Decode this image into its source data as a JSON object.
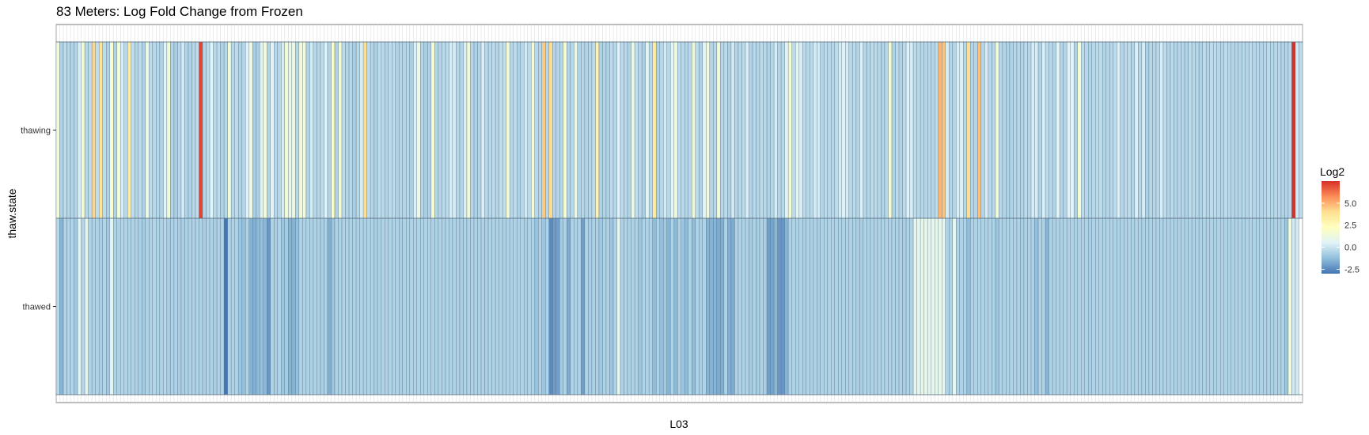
{
  "chart_data": {
    "type": "heatmap",
    "title": "83 Meters: Log Fold Change from Frozen",
    "xlabel": "L03",
    "ylabel": "thaw.state",
    "rows": [
      "thawing",
      "thawed"
    ],
    "legend": {
      "title": "Log2",
      "ticks": [
        "5.0",
        "2.5",
        "0.0",
        "-2.5"
      ],
      "tick_values": [
        5.0,
        2.5,
        0.0,
        -2.5
      ],
      "range": [
        -3.0,
        7.5
      ],
      "placement": "right",
      "colors": [
        "#4575b4",
        "#91bfdb",
        "#e0f3f8",
        "#ffffbf",
        "#fee090",
        "#fc8d59",
        "#d73027"
      ]
    },
    "values": {
      "thawing": [
        1.4,
        -0.6,
        -0.3,
        -0.5,
        -0.5,
        -0.5,
        0.4,
        1.6,
        -0.4,
        -0.3,
        4.2,
        -0.2,
        3.8,
        -0.3,
        -0.6,
        1.8,
        -0.6,
        1.5,
        0.3,
        -0.4,
        3.2,
        -0.3,
        -0.5,
        -0.3,
        -0.6,
        1.2,
        -0.3,
        -0.4,
        -0.4,
        -0.6,
        0.5,
        1.5,
        -0.5,
        -0.7,
        -0.4,
        0.2,
        -0.5,
        -0.6,
        -0.4,
        -0.3,
        7.1,
        -0.5,
        -0.3,
        0.5,
        -0.4,
        -0.3,
        -0.6,
        -0.4,
        1.6,
        -0.4,
        -0.3,
        -0.6,
        -0.5,
        0.5,
        1.3,
        -0.7,
        -0.7,
        0.8,
        1.6,
        -0.5,
        0.6,
        -0.4,
        -0.4,
        0.3,
        1.6,
        1.1,
        1.2,
        -0.4,
        1.5,
        1.5,
        -0.6,
        0.3,
        -0.4,
        -0.4,
        -0.3,
        0.5,
        -0.5,
        2.1,
        -0.6,
        1.6,
        -0.3,
        -0.5,
        -0.4,
        -0.7,
        -0.4,
        0.3,
        4.0,
        -0.3,
        -0.5,
        -0.7,
        -0.2,
        -0.4,
        -0.5,
        -0.3,
        -0.3,
        -0.6,
        -0.5,
        -0.5,
        -0.4,
        -0.7,
        0.4,
        1.2,
        -0.5,
        -0.7,
        -0.6,
        1.8,
        -0.4,
        -0.5,
        -0.3,
        -0.4,
        0.3,
        0.3,
        -0.4,
        -0.5,
        0.4,
        1.7,
        -0.4,
        -0.6,
        -0.5,
        0.4,
        -0.4,
        -0.4,
        -0.3,
        -0.5,
        -0.2,
        -0.2,
        1.7,
        -0.4,
        -0.3,
        -0.6,
        -0.4,
        0.2,
        -0.3,
        1.5,
        -0.4,
        -0.4,
        4.5,
        -0.4,
        4.1,
        -0.5,
        -0.5,
        -0.4,
        1.8,
        -0.5,
        -0.4,
        1.2,
        -0.5,
        -0.4,
        -0.5,
        -0.4,
        -0.3,
        3.0,
        -0.6,
        -0.5,
        -0.6,
        -0.3,
        -0.4,
        0.5,
        -0.3,
        -0.4,
        -0.5,
        1.3,
        -0.2,
        -0.4,
        -0.7,
        0.7,
        -0.4,
        3.4,
        -0.6,
        -0.4,
        0.2,
        -0.4,
        0.6,
        1.3,
        -0.3,
        -0.4,
        -0.5,
        -0.4,
        1.5,
        -0.3,
        -0.6,
        0.5,
        1.6,
        -0.5,
        -0.4,
        1.5,
        -0.4,
        -0.3,
        -0.6,
        0.2,
        -0.5,
        -0.4,
        -0.3,
        0.4,
        -0.5,
        -0.4,
        -0.5,
        -0.3,
        -0.4,
        -0.6,
        -0.4,
        0.3,
        -0.5,
        -0.4,
        0.5,
        1.8,
        -0.3,
        0.8,
        0.3,
        -0.3,
        -0.4,
        -0.3,
        0.2,
        0.2,
        -0.5,
        -0.3,
        -0.4,
        -0.4,
        -0.3,
        0.3,
        0.5,
        0.3,
        -0.4,
        -0.3,
        -0.5,
        0.4,
        -0.5,
        -0.4,
        -0.3,
        -0.3,
        -0.4,
        -0.6,
        -0.4,
        1.8,
        -0.6,
        -0.3,
        -0.5,
        -0.3,
        0.5,
        0.3,
        -0.3,
        -0.4,
        -0.4,
        -0.4,
        -0.4,
        -0.5,
        -0.3,
        4.9,
        4.6,
        0.3,
        -0.5,
        -0.5,
        0.4,
        0.4,
        -0.4,
        4.0,
        -0.5,
        -0.5,
        4.7,
        -0.5,
        0.3,
        -0.4,
        -0.4,
        1.5,
        -0.4,
        -0.5,
        -0.6,
        -0.6,
        -0.4,
        -0.4,
        -0.5,
        -0.3,
        -0.4,
        0.3,
        0.3,
        -0.6,
        0.4,
        -0.3,
        -0.4,
        -0.5,
        0.6,
        -0.5,
        -0.5,
        0.5,
        0.6,
        -0.6,
        1.8,
        -0.3,
        -0.4,
        -0.5,
        -0.4,
        -0.3,
        -0.3,
        -0.5,
        -0.5,
        -0.4,
        -0.3,
        0.4,
        -0.5,
        -0.3,
        -0.3,
        -0.5,
        0.4,
        -0.4,
        0.3,
        -0.6,
        -0.4,
        -0.4,
        -0.4,
        0.3,
        -0.3,
        -0.5,
        -0.3,
        -0.5,
        -0.4,
        -0.5,
        -0.6,
        -0.3,
        -0.4,
        -0.5,
        -0.6,
        -0.3,
        -0.5,
        -0.3,
        -0.3,
        -0.4,
        -0.5,
        -0.3,
        -0.4,
        -0.5,
        -0.5,
        -0.5,
        -0.4,
        -0.5,
        -0.3,
        -0.5,
        -0.4,
        -0.5,
        -0.4,
        -0.3,
        -0.4,
        -0.4,
        -0.4,
        -0.6,
        -0.5,
        -0.4,
        7.5,
        0.2,
        -0.3
      ],
      "thawed": [
        -0.4,
        -1.5,
        -0.6,
        -0.6,
        -0.5,
        -0.9,
        0.6,
        -0.5,
        0.9,
        -0.6,
        -0.6,
        -0.6,
        -0.7,
        -0.5,
        -0.9,
        0.7,
        -0.6,
        -0.6,
        -0.5,
        -0.6,
        -0.6,
        -0.6,
        -0.6,
        -0.7,
        -0.8,
        -0.6,
        -0.6,
        -0.5,
        -0.6,
        -0.6,
        -0.4,
        -0.7,
        -0.6,
        -0.6,
        -0.7,
        -0.7,
        -0.6,
        -0.6,
        -0.6,
        -0.6,
        -0.6,
        -0.7,
        -0.6,
        -0.6,
        -0.7,
        -0.6,
        -0.6,
        -3.0,
        -0.6,
        -0.6,
        -0.6,
        -1.0,
        -1.2,
        -0.6,
        -1.5,
        -1.6,
        -1.4,
        -1.2,
        -1.4,
        -2.2,
        -0.6,
        -0.7,
        -0.6,
        -1.0,
        -0.8,
        -1.5,
        -1.5,
        -1.2,
        -0.6,
        -0.6,
        -0.6,
        -0.6,
        -0.6,
        -0.6,
        -0.7,
        -0.6,
        -1.6,
        -1.0,
        -0.6,
        -0.6,
        -0.6,
        -0.6,
        -0.6,
        -0.6,
        -0.6,
        -0.6,
        -0.6,
        -0.6,
        -0.6,
        -0.8,
        -0.6,
        -0.6,
        -0.6,
        -0.6,
        -0.6,
        -0.6,
        -0.7,
        -0.6,
        -0.6,
        -0.6,
        -0.6,
        -0.6,
        -0.6,
        -0.6,
        -0.6,
        -0.6,
        -0.6,
        -0.6,
        -0.6,
        -0.6,
        -0.6,
        -0.6,
        -0.6,
        -0.7,
        -0.6,
        -0.6,
        -0.6,
        -0.6,
        -0.6,
        -0.6,
        -0.7,
        -0.6,
        -0.6,
        -0.6,
        -0.6,
        -0.6,
        -0.6,
        -0.6,
        -0.6,
        -0.6,
        -0.6,
        -0.7,
        -0.6,
        -0.6,
        -1.1,
        -0.6,
        -1.0,
        -0.6,
        -2.5,
        -2.1,
        -2.0,
        -0.8,
        -0.6,
        -1.7,
        -0.6,
        -0.6,
        -0.6,
        -2.0,
        -0.6,
        -0.7,
        -0.6,
        -0.6,
        -0.9,
        -0.6,
        -0.6,
        -1.0,
        -0.6,
        0.9,
        -0.6,
        -0.6,
        -0.6,
        -0.6,
        -0.6,
        -1.0,
        -0.6,
        -0.6,
        -0.6,
        -1.3,
        -0.6,
        -1.2,
        -0.9,
        -1.5,
        -0.6,
        -1.4,
        -0.6,
        -1.0,
        -1.3,
        -0.6,
        -1.3,
        -0.6,
        -0.7,
        -0.6,
        -1.5,
        -1.5,
        -1.5,
        -1.7,
        -1.6,
        -0.6,
        -1.6,
        -1.7,
        -0.6,
        -0.6,
        -0.6,
        -0.6,
        -0.8,
        -0.6,
        -0.8,
        -0.6,
        -0.7,
        -2.0,
        -1.9,
        -1.4,
        -2.2,
        -2.2,
        -1.5,
        -0.6,
        -0.6,
        -0.6,
        -0.6,
        -0.7,
        -0.6,
        -0.6,
        -0.6,
        -0.7,
        -0.6,
        -0.6,
        -0.6,
        -0.6,
        -0.6,
        -0.6,
        -0.6,
        -0.6,
        -0.6,
        -0.6,
        -0.7,
        -0.7,
        -0.6,
        -0.6,
        -0.6,
        -0.6,
        -0.6,
        -0.6,
        -0.6,
        -0.6,
        -0.6,
        -0.6,
        -0.6,
        -0.7,
        -0.6,
        -0.6,
        0.9,
        0.9,
        0.9,
        0.9,
        0.9,
        0.9,
        0.9,
        0.9,
        0.9,
        -0.6,
        -0.6,
        0.9,
        -0.6,
        -0.6,
        -0.6,
        -1.3,
        -0.6,
        -0.6,
        -0.6,
        -0.6,
        -0.6,
        -0.6,
        -0.6,
        -1.1,
        -0.6,
        -0.6,
        -0.6,
        -0.6,
        -0.6,
        -0.6,
        -0.7,
        -0.6,
        -0.6,
        -0.6,
        -1.2,
        -0.6,
        -0.6,
        -1.5,
        -0.6,
        -0.6,
        -0.6,
        -0.6,
        -0.6,
        -0.6,
        -0.6,
        -0.6,
        -0.6,
        -0.6,
        -0.6,
        -0.7,
        -0.6,
        -0.6,
        -0.6,
        -0.6,
        -0.6,
        -0.6,
        -0.6,
        -0.6,
        -0.6,
        -0.6,
        -0.6,
        -0.6,
        -0.6,
        -0.6,
        -0.6,
        -0.6,
        -0.6,
        -0.6,
        -0.6,
        -0.6,
        -0.6,
        -0.6,
        -0.6,
        -0.6,
        -0.6,
        -0.6,
        -0.6,
        -0.6,
        -0.6,
        -0.6,
        -0.6,
        -0.6,
        -0.6,
        -0.6,
        -0.6,
        -0.6,
        -0.6,
        -0.6,
        -0.6,
        -0.6,
        -0.6,
        -0.6,
        -0.6,
        -0.6,
        -0.6,
        -0.6,
        -0.6,
        -0.6,
        -0.6,
        -0.6,
        -0.6,
        -0.6,
        -0.6,
        -0.6,
        -1.0,
        1.5,
        0.2,
        0.2
      ]
    }
  }
}
